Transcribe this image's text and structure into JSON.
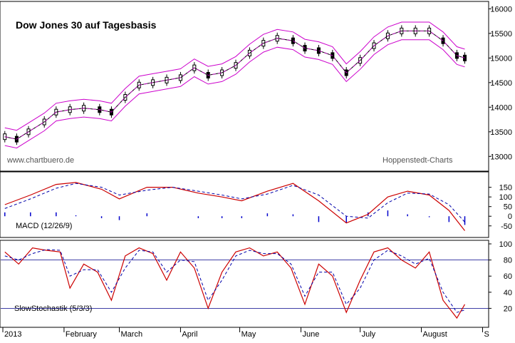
{
  "chart_data": {
    "type": "candlestick",
    "title": "Dow Jones 30 auf Tagesbasis",
    "source_left": "www.chartbuero.de",
    "source_right": "Hoppenstedt-Charts",
    "x_axis": {
      "labels": [
        "2013",
        "February",
        "March",
        "April",
        "May",
        "June",
        "July",
        "August",
        "S"
      ]
    },
    "main_panel": {
      "ylim": [
        12700,
        16150
      ],
      "y_ticks": [
        13000,
        13500,
        14000,
        14500,
        15000,
        15500,
        16000
      ],
      "price_series": [
        {
          "date": "2013-01-02",
          "value": 13400
        },
        {
          "date": "2013-01-08",
          "value": 13350
        },
        {
          "date": "2013-01-14",
          "value": 13500
        },
        {
          "date": "2013-01-22",
          "value": 13700
        },
        {
          "date": "2013-01-28",
          "value": 13900
        },
        {
          "date": "2013-02-04",
          "value": 13950
        },
        {
          "date": "2013-02-11",
          "value": 13980
        },
        {
          "date": "2013-02-19",
          "value": 13950
        },
        {
          "date": "2013-02-25",
          "value": 13900
        },
        {
          "date": "2013-03-04",
          "value": 14200
        },
        {
          "date": "2013-03-11",
          "value": 14450
        },
        {
          "date": "2013-03-18",
          "value": 14500
        },
        {
          "date": "2013-03-25",
          "value": 14550
        },
        {
          "date": "2013-04-01",
          "value": 14600
        },
        {
          "date": "2013-04-08",
          "value": 14800
        },
        {
          "date": "2013-04-15",
          "value": 14650
        },
        {
          "date": "2013-04-22",
          "value": 14700
        },
        {
          "date": "2013-04-29",
          "value": 14850
        },
        {
          "date": "2013-05-06",
          "value": 15100
        },
        {
          "date": "2013-05-13",
          "value": 15300
        },
        {
          "date": "2013-05-20",
          "value": 15400
        },
        {
          "date": "2013-05-28",
          "value": 15350
        },
        {
          "date": "2013-06-03",
          "value": 15200
        },
        {
          "date": "2013-06-10",
          "value": 15150
        },
        {
          "date": "2013-06-17",
          "value": 15050
        },
        {
          "date": "2013-06-24",
          "value": 14700
        },
        {
          "date": "2013-07-01",
          "value": 14950
        },
        {
          "date": "2013-07-08",
          "value": 15250
        },
        {
          "date": "2013-07-15",
          "value": 15450
        },
        {
          "date": "2013-07-22",
          "value": 15550
        },
        {
          "date": "2013-07-29",
          "value": 15550
        },
        {
          "date": "2013-08-05",
          "value": 15550
        },
        {
          "date": "2013-08-12",
          "value": 15350
        },
        {
          "date": "2013-08-19",
          "value": 15050
        },
        {
          "date": "2013-08-23",
          "value": 15000
        }
      ]
    },
    "macd_panel": {
      "label": "MACD (12/26/9)",
      "ylim": [
        -110,
        230
      ],
      "y_ticks": [
        150,
        100,
        50,
        0,
        -50
      ],
      "macd": [
        {
          "date": "2013-01-02",
          "value": 60
        },
        {
          "date": "2013-01-15",
          "value": 110
        },
        {
          "date": "2013-01-28",
          "value": 165
        },
        {
          "date": "2013-02-07",
          "value": 175
        },
        {
          "date": "2013-02-20",
          "value": 140
        },
        {
          "date": "2013-03-01",
          "value": 90
        },
        {
          "date": "2013-03-15",
          "value": 150
        },
        {
          "date": "2013-03-28",
          "value": 150
        },
        {
          "date": "2013-04-10",
          "value": 120
        },
        {
          "date": "2013-04-22",
          "value": 100
        },
        {
          "date": "2013-05-02",
          "value": 80
        },
        {
          "date": "2013-05-15",
          "value": 130
        },
        {
          "date": "2013-05-28",
          "value": 170
        },
        {
          "date": "2013-06-10",
          "value": 80
        },
        {
          "date": "2013-06-24",
          "value": -35
        },
        {
          "date": "2013-07-05",
          "value": 10
        },
        {
          "date": "2013-07-15",
          "value": 100
        },
        {
          "date": "2013-07-25",
          "value": 130
        },
        {
          "date": "2013-08-05",
          "value": 110
        },
        {
          "date": "2013-08-15",
          "value": 30
        },
        {
          "date": "2013-08-23",
          "value": -75
        }
      ],
      "signal": [
        {
          "date": "2013-01-02",
          "value": 40
        },
        {
          "date": "2013-01-15",
          "value": 90
        },
        {
          "date": "2013-01-28",
          "value": 145
        },
        {
          "date": "2013-02-07",
          "value": 170
        },
        {
          "date": "2013-02-20",
          "value": 150
        },
        {
          "date": "2013-03-01",
          "value": 110
        },
        {
          "date": "2013-03-15",
          "value": 135
        },
        {
          "date": "2013-03-28",
          "value": 150
        },
        {
          "date": "2013-04-10",
          "value": 130
        },
        {
          "date": "2013-04-22",
          "value": 110
        },
        {
          "date": "2013-05-02",
          "value": 90
        },
        {
          "date": "2013-05-15",
          "value": 115
        },
        {
          "date": "2013-05-28",
          "value": 160
        },
        {
          "date": "2013-06-10",
          "value": 110
        },
        {
          "date": "2013-06-24",
          "value": 0
        },
        {
          "date": "2013-07-05",
          "value": -10
        },
        {
          "date": "2013-07-15",
          "value": 70
        },
        {
          "date": "2013-07-25",
          "value": 120
        },
        {
          "date": "2013-08-05",
          "value": 115
        },
        {
          "date": "2013-08-15",
          "value": 60
        },
        {
          "date": "2013-08-23",
          "value": -30
        }
      ]
    },
    "stoch_panel": {
      "label": "SlowStochastik (5/3/3)",
      "ylim": [
        0,
        100
      ],
      "y_ticks": [
        100,
        80,
        60,
        40,
        20
      ],
      "reference_lines": [
        80,
        20
      ],
      "k": [
        {
          "date": "2013-01-02",
          "value": 90
        },
        {
          "date": "2013-01-09",
          "value": 75
        },
        {
          "date": "2013-01-16",
          "value": 95
        },
        {
          "date": "2013-01-23",
          "value": 92
        },
        {
          "date": "2013-01-30",
          "value": 90
        },
        {
          "date": "2013-02-04",
          "value": 45
        },
        {
          "date": "2013-02-11",
          "value": 75
        },
        {
          "date": "2013-02-18",
          "value": 65
        },
        {
          "date": "2013-02-25",
          "value": 30
        },
        {
          "date": "2013-03-04",
          "value": 85
        },
        {
          "date": "2013-03-11",
          "value": 95
        },
        {
          "date": "2013-03-18",
          "value": 88
        },
        {
          "date": "2013-03-25",
          "value": 55
        },
        {
          "date": "2013-04-01",
          "value": 90
        },
        {
          "date": "2013-04-08",
          "value": 70
        },
        {
          "date": "2013-04-15",
          "value": 20
        },
        {
          "date": "2013-04-22",
          "value": 65
        },
        {
          "date": "2013-04-29",
          "value": 90
        },
        {
          "date": "2013-05-06",
          "value": 95
        },
        {
          "date": "2013-05-13",
          "value": 85
        },
        {
          "date": "2013-05-20",
          "value": 90
        },
        {
          "date": "2013-05-27",
          "value": 70
        },
        {
          "date": "2013-06-03",
          "value": 25
        },
        {
          "date": "2013-06-10",
          "value": 75
        },
        {
          "date": "2013-06-17",
          "value": 60
        },
        {
          "date": "2013-06-24",
          "value": 15
        },
        {
          "date": "2013-07-01",
          "value": 55
        },
        {
          "date": "2013-07-08",
          "value": 90
        },
        {
          "date": "2013-07-15",
          "value": 95
        },
        {
          "date": "2013-07-22",
          "value": 80
        },
        {
          "date": "2013-07-29",
          "value": 70
        },
        {
          "date": "2013-08-05",
          "value": 90
        },
        {
          "date": "2013-08-12",
          "value": 30
        },
        {
          "date": "2013-08-19",
          "value": 8
        },
        {
          "date": "2013-08-23",
          "value": 25
        }
      ],
      "d": [
        {
          "date": "2013-01-02",
          "value": 85
        },
        {
          "date": "2013-01-09",
          "value": 80
        },
        {
          "date": "2013-01-16",
          "value": 88
        },
        {
          "date": "2013-01-23",
          "value": 93
        },
        {
          "date": "2013-01-30",
          "value": 92
        },
        {
          "date": "2013-02-04",
          "value": 60
        },
        {
          "date": "2013-02-11",
          "value": 68
        },
        {
          "date": "2013-02-18",
          "value": 68
        },
        {
          "date": "2013-02-25",
          "value": 40
        },
        {
          "date": "2013-03-04",
          "value": 70
        },
        {
          "date": "2013-03-11",
          "value": 92
        },
        {
          "date": "2013-03-18",
          "value": 90
        },
        {
          "date": "2013-03-25",
          "value": 65
        },
        {
          "date": "2013-04-01",
          "value": 80
        },
        {
          "date": "2013-04-08",
          "value": 78
        },
        {
          "date": "2013-04-15",
          "value": 30
        },
        {
          "date": "2013-04-22",
          "value": 55
        },
        {
          "date": "2013-04-29",
          "value": 85
        },
        {
          "date": "2013-05-06",
          "value": 92
        },
        {
          "date": "2013-05-13",
          "value": 88
        },
        {
          "date": "2013-05-20",
          "value": 88
        },
        {
          "date": "2013-05-27",
          "value": 75
        },
        {
          "date": "2013-06-03",
          "value": 35
        },
        {
          "date": "2013-06-10",
          "value": 65
        },
        {
          "date": "2013-06-17",
          "value": 65
        },
        {
          "date": "2013-06-24",
          "value": 25
        },
        {
          "date": "2013-07-01",
          "value": 45
        },
        {
          "date": "2013-07-08",
          "value": 80
        },
        {
          "date": "2013-07-15",
          "value": 92
        },
        {
          "date": "2013-07-22",
          "value": 85
        },
        {
          "date": "2013-07-29",
          "value": 75
        },
        {
          "date": "2013-08-05",
          "value": 82
        },
        {
          "date": "2013-08-12",
          "value": 40
        },
        {
          "date": "2013-08-19",
          "value": 15
        },
        {
          "date": "2013-08-23",
          "value": 18
        }
      ]
    }
  },
  "colors": {
    "price": "#000000",
    "bollinger": "#cc00cc",
    "trend": "#008000",
    "macd": "#cc0000",
    "signal": "#0000aa",
    "histogram": "#0000cc",
    "stoch_k": "#cc0000",
    "stoch_d": "#0000aa",
    "reference_line": "#000088"
  }
}
